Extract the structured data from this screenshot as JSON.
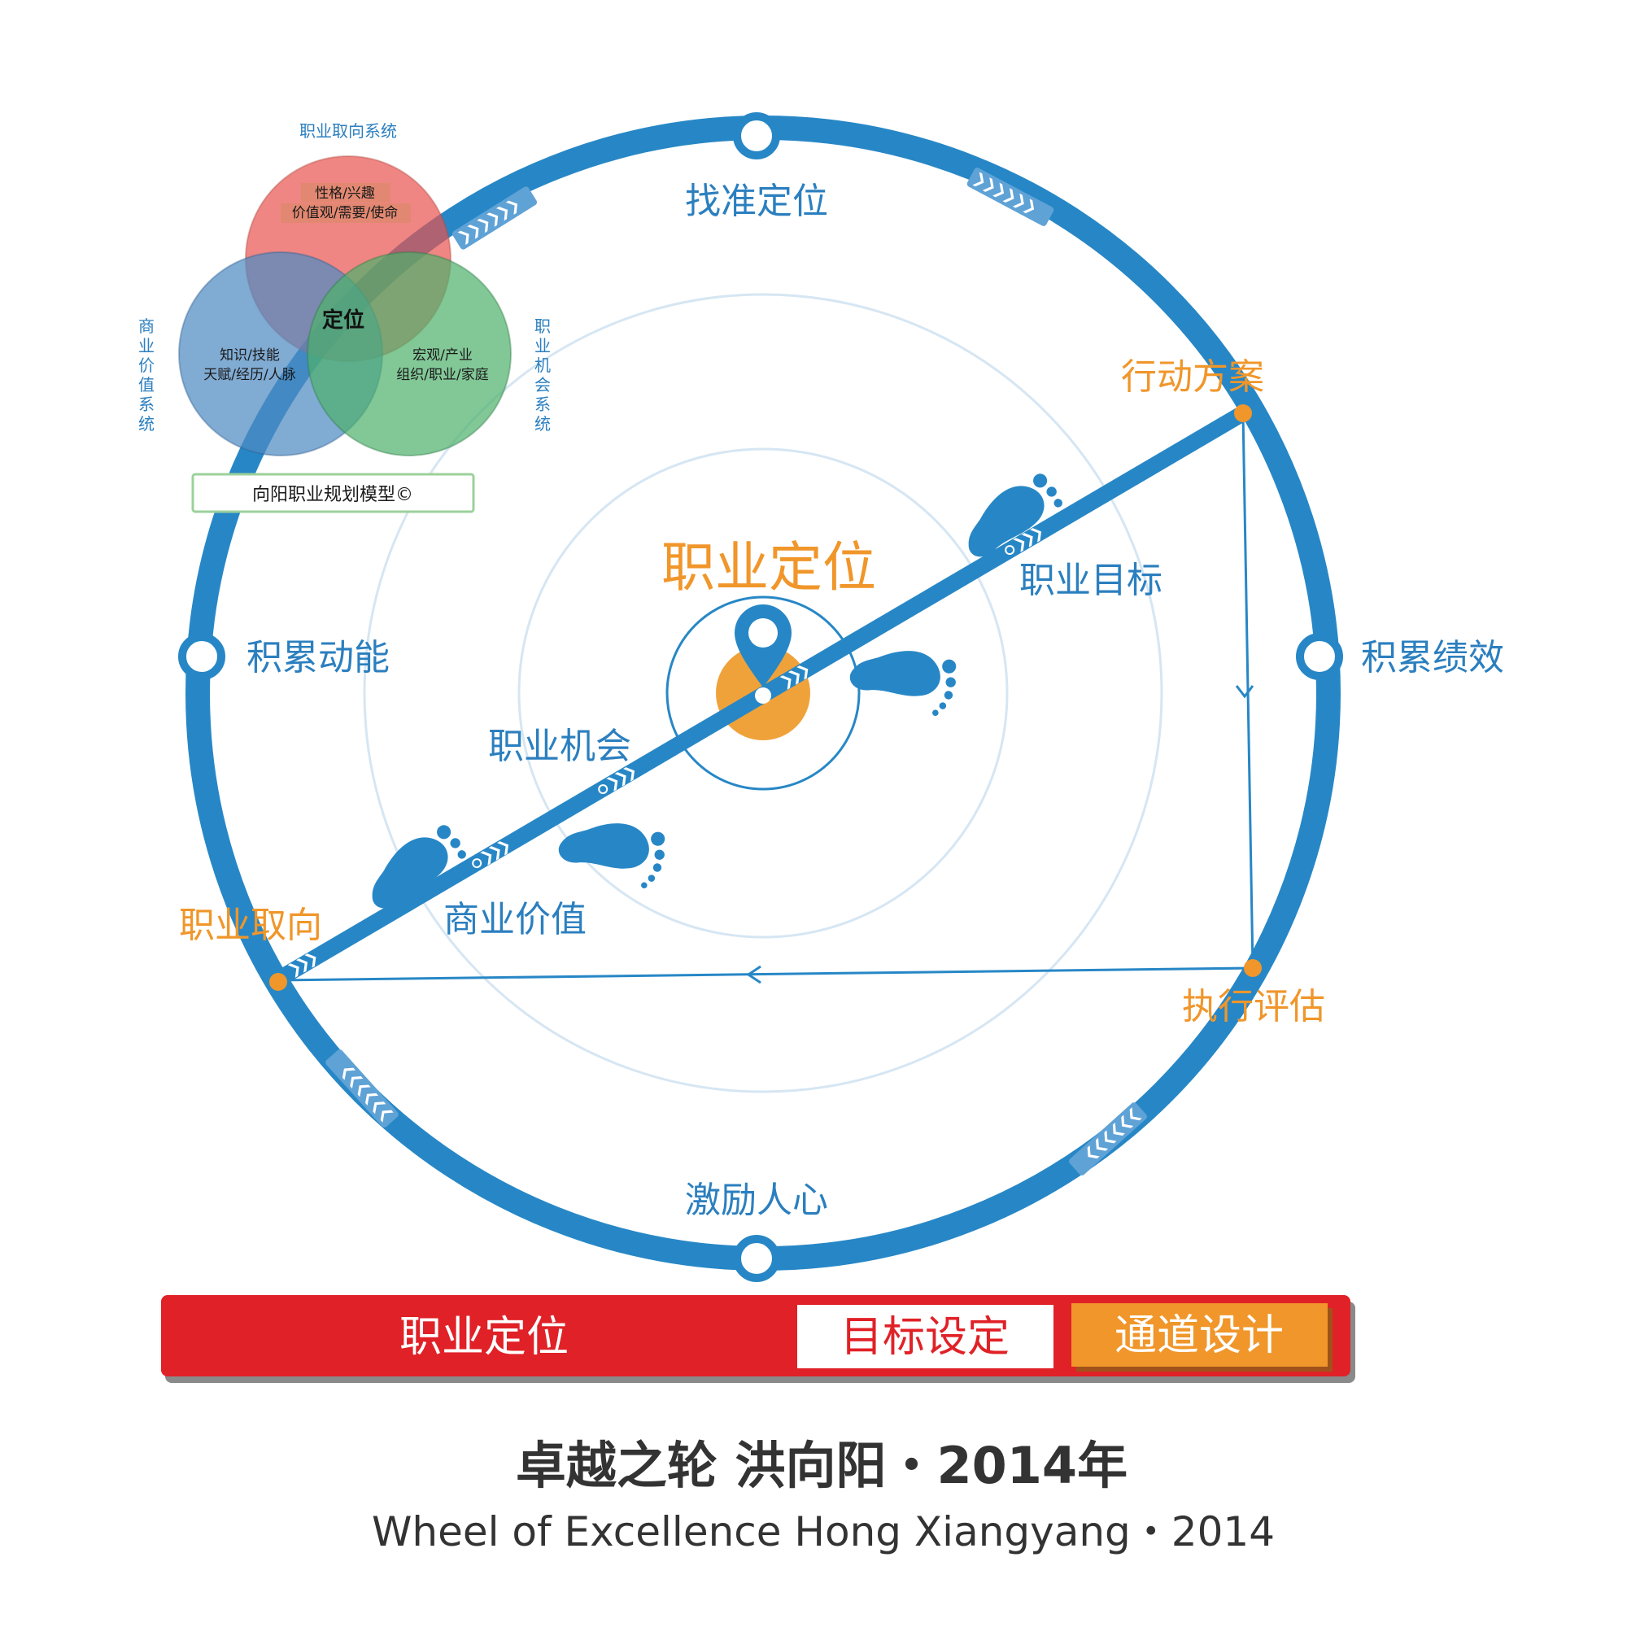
{
  "colors": {
    "ring_blue": "#2787c6",
    "orange": "#f0a23a",
    "red_bar": "#e02127",
    "label_blue": "#2b7fbf",
    "label_orange": "#f0962a",
    "text_dark": "#333333"
  },
  "center": {
    "title": "职业定位"
  },
  "compass": {
    "top": "找准定位",
    "left": "积累动能",
    "right": "积累绩效",
    "bottom": "激励人心"
  },
  "points": {
    "action_plan": "行动方案",
    "career_orientation": "职业取向",
    "execution_eval": "执行评估"
  },
  "path_labels": {
    "career_goal": "职业目标",
    "career_opportunity": "职业机会",
    "business_value": "商业价值"
  },
  "venn": {
    "top_label": "职业取向系统",
    "left_label": "商业价值系统",
    "right_label": "职业机会系统",
    "red_line1": "性格/兴趣",
    "red_line2": "价值观/需要/使命",
    "blue_line1": "知识/技能",
    "blue_line2": "天赋/经历/人脉",
    "green_line1": "宏观/产业",
    "green_line2": "组织/职业/家庭",
    "center": "定位",
    "model_name": "向阳职业规划模型©"
  },
  "bottom_bar": {
    "phase1": "职业定位",
    "phase2": "目标设定",
    "phase3": "通道设计"
  },
  "footer": {
    "title_cn": "卓越之轮  洪向阳・2014年",
    "title_en": "Wheel of Excellence   Hong Xiangyang・2014"
  }
}
